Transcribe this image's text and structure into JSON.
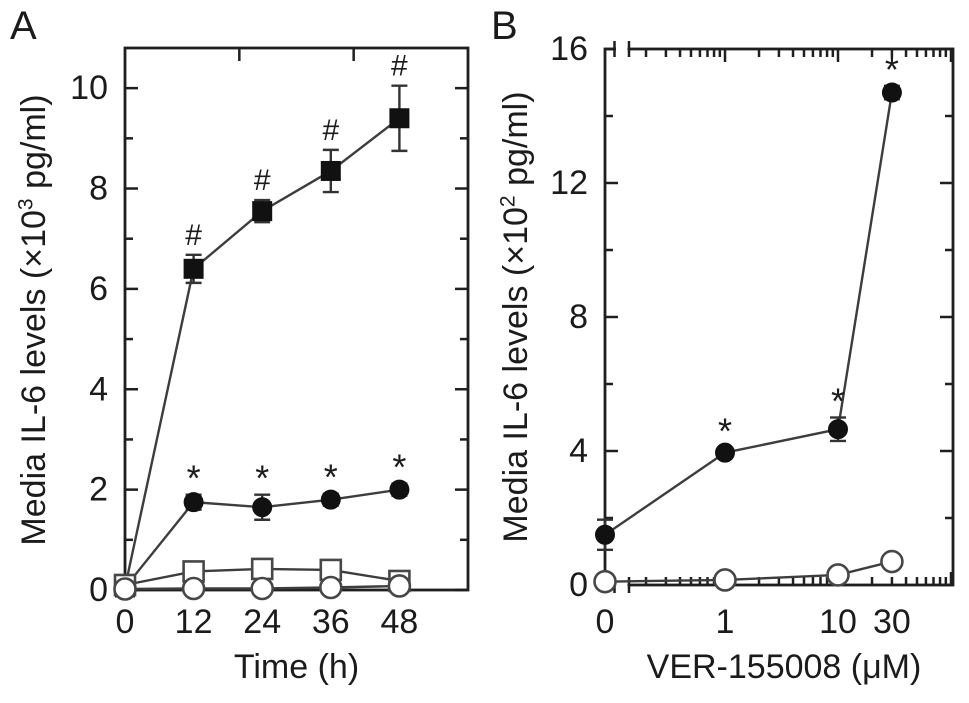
{
  "figure": {
    "background": "#ffffff",
    "ink_color": "#1f1f1f",
    "series_line_color": "#3d3d3d",
    "marker_color": "#111111",
    "open_marker_stroke": "#474747",
    "error_bar_color": "#333333",
    "hash_color": "#333333",
    "star_color": "#4d4d4d"
  },
  "panels": [
    {
      "letter": "A",
      "ylabel_prefix": "Media IL-6 levels (×10",
      "ylabel_exponent": "3",
      "ylabel_suffix": " pg/ml)",
      "xlabel": "Time (h)"
    },
    {
      "letter": "B",
      "ylabel_prefix": "Media IL-6 levels (×10",
      "ylabel_exponent": "2",
      "ylabel_suffix": " pg/ml)",
      "xlabel": "VER-155008 (μM)"
    }
  ],
  "chart_data": [
    {
      "panel": "A",
      "type": "line",
      "title": "",
      "xlabel": "Time (h)",
      "ylabel": "Media IL-6 levels (×10³ pg/ml)",
      "x": [
        0,
        12,
        24,
        36,
        48
      ],
      "xlim": [
        0,
        60
      ],
      "ylim": [
        0,
        10.8
      ],
      "yticks_major": [
        0,
        2,
        4,
        6,
        8,
        10
      ],
      "yticks_minor": [
        1,
        3,
        5,
        7,
        9
      ],
      "xtick_labels": [
        "0",
        "12",
        "24",
        "36",
        "48"
      ],
      "xticks_labeled": [
        0,
        12,
        24,
        36,
        48
      ],
      "xticks_top": [
        20,
        40
      ],
      "grid": false,
      "legend": "none",
      "series": [
        {
          "name": "filled-square",
          "marker": "square",
          "fill": "filled",
          "values": [
            0.05,
            6.4,
            7.55,
            8.35,
            9.4
          ],
          "errors": [
            0,
            0.28,
            0.22,
            0.42,
            0.65
          ],
          "annotation": "#",
          "annotated_points": [
            1,
            2,
            3,
            4
          ]
        },
        {
          "name": "filled-circle",
          "marker": "circle",
          "fill": "filled",
          "values": [
            0.05,
            1.75,
            1.65,
            1.8,
            2.0
          ],
          "errors": [
            0,
            0.15,
            0.25,
            0.12,
            0.12
          ],
          "annotation": "*",
          "annotated_points": [
            1,
            2,
            3,
            4
          ]
        },
        {
          "name": "open-square",
          "marker": "square",
          "fill": "open",
          "values": [
            0.1,
            0.37,
            0.42,
            0.4,
            0.18
          ],
          "errors": [
            0,
            0,
            0,
            0,
            0
          ],
          "annotation": "",
          "annotated_points": []
        },
        {
          "name": "open-circle",
          "marker": "circle",
          "fill": "open",
          "values": [
            0.02,
            0.03,
            0.03,
            0.05,
            0.08
          ],
          "errors": [
            0,
            0,
            0,
            0,
            0
          ],
          "annotation": "",
          "annotated_points": []
        }
      ]
    },
    {
      "panel": "B",
      "type": "line",
      "title": "",
      "xlabel": "VER-155008 (μM)",
      "ylabel": "Media IL-6 levels (×10² pg/ml)",
      "x": [
        0,
        1,
        10,
        30
      ],
      "x_scale": "log-with-break-at-zero",
      "xlim_log": [
        0.2,
        104
      ],
      "ylim": [
        0,
        16
      ],
      "yticks_major": [
        0,
        4,
        8,
        12,
        16
      ],
      "yticks_minor": [
        2,
        6,
        10,
        14
      ],
      "xtick_labels": [
        "0",
        "1",
        "10",
        "30"
      ],
      "xticks_labeled": [
        0,
        1,
        10,
        30
      ],
      "xticks_log_minor": [
        0.2,
        0.3,
        0.4,
        0.5,
        0.6,
        0.7,
        0.8,
        0.9,
        2,
        3,
        4,
        5,
        6,
        7,
        8,
        9,
        20,
        30,
        40,
        50,
        60,
        70,
        80,
        90
      ],
      "xticks_log_major": [
        1,
        10,
        100
      ],
      "grid": false,
      "legend": "none",
      "series": [
        {
          "name": "filled-circle",
          "marker": "circle",
          "fill": "filled",
          "values": [
            1.5,
            3.95,
            4.65,
            14.7
          ],
          "errors": [
            0.45,
            0.15,
            0.35,
            0.2
          ],
          "annotation": "*",
          "annotated_points": [
            1,
            2,
            3
          ]
        },
        {
          "name": "open-circle",
          "marker": "circle",
          "fill": "open",
          "values": [
            0.1,
            0.15,
            0.3,
            0.7
          ],
          "errors": [
            0,
            0,
            0,
            0
          ],
          "annotation": "",
          "annotated_points": []
        }
      ]
    }
  ]
}
